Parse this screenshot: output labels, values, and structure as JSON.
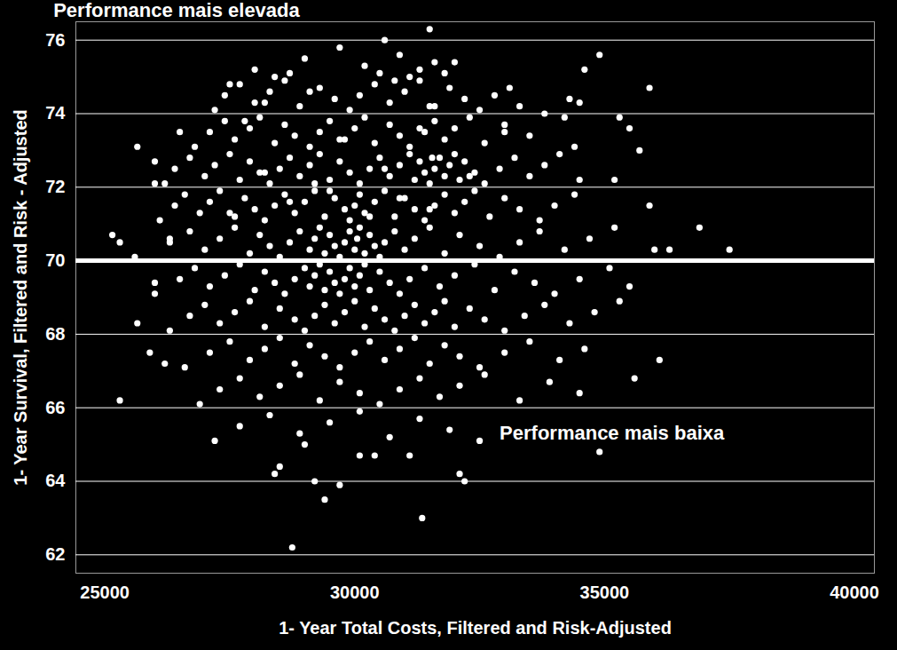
{
  "chart_data": {
    "type": "scatter",
    "x_label": "1- Year Total Costs, Filtered and Risk-Adjusted",
    "y_label": "1- Year Survival, Filtered and Risk - Adjusted",
    "xlim": [
      24420,
      40400
    ],
    "ylim": [
      61.5,
      76.5
    ],
    "xticks": [
      25000,
      30000,
      35000,
      40000
    ],
    "yticks": [
      62,
      64,
      66,
      68,
      70,
      72,
      74,
      76
    ],
    "grid": true,
    "color": "#ffffff",
    "marker": "circle",
    "reference_y": 70,
    "annotations": [
      {
        "text": "Performance mais elevada",
        "x": 23970,
        "y": 76.8
      },
      {
        "text": "Performance mais baixa",
        "x": 32900,
        "y": 65.3
      }
    ],
    "points": [
      [
        25150,
        70.7
      ],
      [
        25300,
        70.5
      ],
      [
        25300,
        66.2
      ],
      [
        25650,
        73.1
      ],
      [
        25650,
        68.3
      ],
      [
        25900,
        67.5
      ],
      [
        26000,
        69.4
      ],
      [
        26000,
        72.1
      ],
      [
        26200,
        67.2
      ],
      [
        26300,
        70.6
      ],
      [
        28750,
        62.2
      ],
      [
        31350,
        63.0
      ],
      [
        29400,
        63.5
      ],
      [
        29200,
        64.0
      ],
      [
        28400,
        64.2
      ],
      [
        29700,
        63.9
      ],
      [
        31500,
        76.3
      ],
      [
        30600,
        76.0
      ],
      [
        34900,
        75.6
      ],
      [
        34600,
        75.2
      ],
      [
        35900,
        74.7
      ],
      [
        36900,
        70.9
      ],
      [
        37500,
        70.3
      ],
      [
        36300,
        70.3
      ],
      [
        36000,
        70.3
      ],
      [
        35900,
        71.5
      ],
      [
        36100,
        67.3
      ],
      [
        35600,
        66.8
      ],
      [
        34900,
        64.8
      ],
      [
        32200,
        64.0
      ],
      [
        32100,
        64.2
      ],
      [
        30100,
        64.7
      ],
      [
        30400,
        64.7
      ],
      [
        31100,
        64.7
      ],
      [
        29000,
        65.0
      ],
      [
        28500,
        64.4
      ],
      [
        33000,
        73.5
      ],
      [
        33300,
        74.2
      ],
      [
        33800,
        74.0
      ],
      [
        34200,
        73.9
      ],
      [
        34500,
        74.3
      ],
      [
        35300,
        73.9
      ],
      [
        35500,
        73.6
      ],
      [
        35700,
        73.0
      ],
      [
        35200,
        72.2
      ],
      [
        28700,
        75.1
      ],
      [
        29000,
        75.5
      ],
      [
        29700,
        75.8
      ],
      [
        30200,
        75.3
      ],
      [
        30900,
        75.6
      ],
      [
        31100,
        75.0
      ],
      [
        31300,
        75.2
      ],
      [
        31600,
        75.4
      ],
      [
        31800,
        75.1
      ],
      [
        32000,
        75.4
      ],
      [
        28000,
        75.2
      ],
      [
        28400,
        75.0
      ],
      [
        30500,
        75.1
      ],
      [
        27200,
        74.1
      ],
      [
        27400,
        74.5
      ],
      [
        27700,
        74.8
      ],
      [
        28000,
        74.3
      ],
      [
        28300,
        74.6
      ],
      [
        28600,
        74.9
      ],
      [
        28900,
        74.2
      ],
      [
        29300,
        74.7
      ],
      [
        29600,
        74.4
      ],
      [
        29900,
        74.1
      ],
      [
        30100,
        74.5
      ],
      [
        30400,
        74.8
      ],
      [
        30700,
        74.3
      ],
      [
        31000,
        74.6
      ],
      [
        31300,
        74.9
      ],
      [
        31600,
        74.2
      ],
      [
        31900,
        74.7
      ],
      [
        32200,
        74.4
      ],
      [
        32500,
        74.1
      ],
      [
        32800,
        74.5
      ],
      [
        27500,
        74.8
      ],
      [
        28200,
        74.3
      ],
      [
        29100,
        74.6
      ],
      [
        30800,
        74.9
      ],
      [
        31500,
        74.2
      ],
      [
        33100,
        74.7
      ],
      [
        34300,
        74.4
      ],
      [
        26800,
        73.1
      ],
      [
        27100,
        73.5
      ],
      [
        27400,
        73.8
      ],
      [
        27600,
        73.3
      ],
      [
        27900,
        73.6
      ],
      [
        28100,
        73.9
      ],
      [
        28400,
        73.2
      ],
      [
        28600,
        73.7
      ],
      [
        28800,
        73.4
      ],
      [
        29100,
        73.1
      ],
      [
        29300,
        73.5
      ],
      [
        29500,
        73.8
      ],
      [
        29800,
        73.3
      ],
      [
        30000,
        73.6
      ],
      [
        30200,
        73.9
      ],
      [
        30400,
        73.2
      ],
      [
        30700,
        73.7
      ],
      [
        30900,
        73.4
      ],
      [
        31100,
        73.1
      ],
      [
        31400,
        73.5
      ],
      [
        31600,
        73.8
      ],
      [
        31800,
        73.3
      ],
      [
        32000,
        73.6
      ],
      [
        32300,
        73.9
      ],
      [
        32600,
        73.2
      ],
      [
        33000,
        73.7
      ],
      [
        33500,
        73.4
      ],
      [
        34400,
        73.1
      ],
      [
        26500,
        73.5
      ],
      [
        27800,
        73.8
      ],
      [
        29700,
        73.3
      ],
      [
        31300,
        73.6
      ],
      [
        26200,
        72.1
      ],
      [
        26400,
        72.5
      ],
      [
        26700,
        72.8
      ],
      [
        27000,
        72.3
      ],
      [
        27200,
        72.6
      ],
      [
        27500,
        72.9
      ],
      [
        27700,
        72.2
      ],
      [
        27900,
        72.7
      ],
      [
        28100,
        72.4
      ],
      [
        28300,
        72.1
      ],
      [
        28500,
        72.5
      ],
      [
        28700,
        72.8
      ],
      [
        28900,
        72.3
      ],
      [
        29100,
        72.6
      ],
      [
        29300,
        72.9
      ],
      [
        29500,
        72.2
      ],
      [
        29700,
        72.7
      ],
      [
        29900,
        72.4
      ],
      [
        30100,
        72.1
      ],
      [
        30300,
        72.5
      ],
      [
        30500,
        72.8
      ],
      [
        30700,
        72.3
      ],
      [
        30900,
        72.6
      ],
      [
        31100,
        72.9
      ],
      [
        31200,
        72.2
      ],
      [
        31300,
        72.7
      ],
      [
        31400,
        72.4
      ],
      [
        31500,
        72.1
      ],
      [
        31600,
        72.5
      ],
      [
        31700,
        72.8
      ],
      [
        31800,
        72.3
      ],
      [
        31900,
        72.6
      ],
      [
        32000,
        72.9
      ],
      [
        32100,
        72.2
      ],
      [
        32200,
        72.7
      ],
      [
        32400,
        72.4
      ],
      [
        32600,
        72.1
      ],
      [
        32900,
        72.5
      ],
      [
        33200,
        72.8
      ],
      [
        33500,
        72.3
      ],
      [
        33800,
        72.6
      ],
      [
        34100,
        72.9
      ],
      [
        34500,
        72.2
      ],
      [
        26000,
        72.7
      ],
      [
        28200,
        72.4
      ],
      [
        29200,
        72.1
      ],
      [
        30600,
        72.5
      ],
      [
        31550,
        72.8
      ],
      [
        32300,
        72.3
      ],
      [
        26100,
        71.1
      ],
      [
        26400,
        71.5
      ],
      [
        26600,
        71.8
      ],
      [
        26900,
        71.3
      ],
      [
        27100,
        71.6
      ],
      [
        27300,
        71.9
      ],
      [
        27600,
        71.2
      ],
      [
        27800,
        71.7
      ],
      [
        28000,
        71.4
      ],
      [
        28200,
        71.1
      ],
      [
        28400,
        71.5
      ],
      [
        28600,
        71.8
      ],
      [
        28800,
        71.3
      ],
      [
        29000,
        71.6
      ],
      [
        29200,
        71.9
      ],
      [
        29400,
        71.2
      ],
      [
        29600,
        71.7
      ],
      [
        29800,
        71.4
      ],
      [
        29900,
        71.1
      ],
      [
        30000,
        71.5
      ],
      [
        30100,
        71.8
      ],
      [
        30200,
        71.3
      ],
      [
        30400,
        71.6
      ],
      [
        30600,
        71.9
      ],
      [
        30800,
        71.2
      ],
      [
        31000,
        71.7
      ],
      [
        31200,
        71.4
      ],
      [
        31400,
        71.1
      ],
      [
        31600,
        71.5
      ],
      [
        31800,
        71.8
      ],
      [
        32000,
        71.3
      ],
      [
        32200,
        71.6
      ],
      [
        32400,
        71.9
      ],
      [
        32700,
        71.2
      ],
      [
        33000,
        71.7
      ],
      [
        33300,
        71.4
      ],
      [
        33700,
        71.1
      ],
      [
        34000,
        71.5
      ],
      [
        34400,
        71.8
      ],
      [
        27500,
        71.3
      ],
      [
        28700,
        71.6
      ],
      [
        29500,
        71.9
      ],
      [
        30300,
        71.2
      ],
      [
        30900,
        71.7
      ],
      [
        31500,
        71.4
      ],
      [
        25600,
        70.1
      ],
      [
        26300,
        70.5
      ],
      [
        26700,
        70.8
      ],
      [
        27000,
        70.3
      ],
      [
        27300,
        70.6
      ],
      [
        27600,
        70.9
      ],
      [
        27900,
        70.2
      ],
      [
        28100,
        70.7
      ],
      [
        28300,
        70.4
      ],
      [
        28500,
        70.1
      ],
      [
        28700,
        70.5
      ],
      [
        28900,
        70.8
      ],
      [
        29100,
        70.3
      ],
      [
        29200,
        70.6
      ],
      [
        29300,
        70.9
      ],
      [
        29400,
        70.2
      ],
      [
        29500,
        70.7
      ],
      [
        29600,
        70.4
      ],
      [
        29700,
        70.1
      ],
      [
        29800,
        70.5
      ],
      [
        29900,
        70.8
      ],
      [
        30000,
        70.3
      ],
      [
        30050,
        70.6
      ],
      [
        30100,
        70.9
      ],
      [
        30200,
        70.2
      ],
      [
        30300,
        70.7
      ],
      [
        30400,
        70.4
      ],
      [
        30500,
        70.1
      ],
      [
        30600,
        70.5
      ],
      [
        30800,
        70.8
      ],
      [
        31000,
        70.3
      ],
      [
        31200,
        70.6
      ],
      [
        31500,
        70.9
      ],
      [
        31800,
        70.2
      ],
      [
        32100,
        70.7
      ],
      [
        32500,
        70.4
      ],
      [
        32900,
        70.1
      ],
      [
        33300,
        70.5
      ],
      [
        33700,
        70.8
      ],
      [
        34200,
        70.3
      ],
      [
        34700,
        70.6
      ],
      [
        35200,
        70.9
      ],
      [
        26000,
        69.1
      ],
      [
        26500,
        69.5
      ],
      [
        26800,
        69.8
      ],
      [
        27100,
        69.3
      ],
      [
        27400,
        69.6
      ],
      [
        27700,
        69.9
      ],
      [
        28000,
        69.2
      ],
      [
        28200,
        69.7
      ],
      [
        28400,
        69.4
      ],
      [
        28600,
        69.1
      ],
      [
        28800,
        69.5
      ],
      [
        29000,
        69.8
      ],
      [
        29100,
        69.3
      ],
      [
        29200,
        69.6
      ],
      [
        29300,
        69.9
      ],
      [
        29400,
        69.2
      ],
      [
        29500,
        69.7
      ],
      [
        29600,
        69.4
      ],
      [
        29700,
        69.1
      ],
      [
        29800,
        69.5
      ],
      [
        29900,
        69.8
      ],
      [
        30000,
        69.3
      ],
      [
        30100,
        69.6
      ],
      [
        30200,
        69.9
      ],
      [
        30300,
        69.2
      ],
      [
        30500,
        69.7
      ],
      [
        30700,
        69.4
      ],
      [
        30900,
        69.1
      ],
      [
        31100,
        69.5
      ],
      [
        31400,
        69.8
      ],
      [
        31700,
        69.3
      ],
      [
        32000,
        69.6
      ],
      [
        32400,
        69.9
      ],
      [
        32800,
        69.2
      ],
      [
        33200,
        69.7
      ],
      [
        33600,
        69.4
      ],
      [
        34000,
        69.1
      ],
      [
        34500,
        69.5
      ],
      [
        35100,
        69.8
      ],
      [
        35500,
        69.3
      ],
      [
        26300,
        68.1
      ],
      [
        26700,
        68.5
      ],
      [
        27000,
        68.8
      ],
      [
        27300,
        68.3
      ],
      [
        27600,
        68.6
      ],
      [
        27900,
        68.9
      ],
      [
        28200,
        68.2
      ],
      [
        28500,
        68.7
      ],
      [
        28800,
        68.4
      ],
      [
        29000,
        68.1
      ],
      [
        29200,
        68.5
      ],
      [
        29400,
        68.8
      ],
      [
        29600,
        68.3
      ],
      [
        29800,
        68.6
      ],
      [
        30000,
        68.9
      ],
      [
        30200,
        68.2
      ],
      [
        30400,
        68.7
      ],
      [
        30600,
        68.4
      ],
      [
        30800,
        68.1
      ],
      [
        31000,
        68.5
      ],
      [
        31200,
        68.8
      ],
      [
        31400,
        68.3
      ],
      [
        31600,
        68.6
      ],
      [
        31800,
        68.9
      ],
      [
        32000,
        68.2
      ],
      [
        32300,
        68.7
      ],
      [
        32600,
        68.4
      ],
      [
        33000,
        68.1
      ],
      [
        33400,
        68.5
      ],
      [
        33800,
        68.8
      ],
      [
        34300,
        68.3
      ],
      [
        34800,
        68.6
      ],
      [
        35300,
        68.9
      ],
      [
        26600,
        67.1
      ],
      [
        27100,
        67.5
      ],
      [
        27500,
        67.8
      ],
      [
        27900,
        67.3
      ],
      [
        28200,
        67.6
      ],
      [
        28500,
        67.9
      ],
      [
        28800,
        67.2
      ],
      [
        29100,
        67.7
      ],
      [
        29400,
        67.4
      ],
      [
        29700,
        67.1
      ],
      [
        30000,
        67.5
      ],
      [
        30300,
        67.8
      ],
      [
        30600,
        67.3
      ],
      [
        30900,
        67.6
      ],
      [
        31200,
        67.9
      ],
      [
        31500,
        67.2
      ],
      [
        31800,
        67.7
      ],
      [
        32100,
        67.4
      ],
      [
        32500,
        67.1
      ],
      [
        33000,
        67.5
      ],
      [
        33500,
        67.8
      ],
      [
        34100,
        67.3
      ],
      [
        34600,
        67.6
      ],
      [
        26900,
        66.1
      ],
      [
        27300,
        66.5
      ],
      [
        27700,
        66.8
      ],
      [
        28100,
        66.3
      ],
      [
        28500,
        66.6
      ],
      [
        28900,
        66.9
      ],
      [
        29300,
        66.2
      ],
      [
        29700,
        66.7
      ],
      [
        30100,
        66.4
      ],
      [
        30500,
        66.1
      ],
      [
        30900,
        66.5
      ],
      [
        31300,
        66.8
      ],
      [
        31700,
        66.3
      ],
      [
        32100,
        66.6
      ],
      [
        32600,
        66.9
      ],
      [
        33300,
        66.2
      ],
      [
        33900,
        66.7
      ],
      [
        34500,
        66.4
      ],
      [
        27200,
        65.1
      ],
      [
        27700,
        65.5
      ],
      [
        28300,
        65.8
      ],
      [
        28900,
        65.3
      ],
      [
        29500,
        65.6
      ],
      [
        30100,
        65.9
      ],
      [
        30700,
        65.2
      ],
      [
        31300,
        65.7
      ],
      [
        31900,
        65.4
      ],
      [
        32500,
        65.1
      ]
    ]
  }
}
